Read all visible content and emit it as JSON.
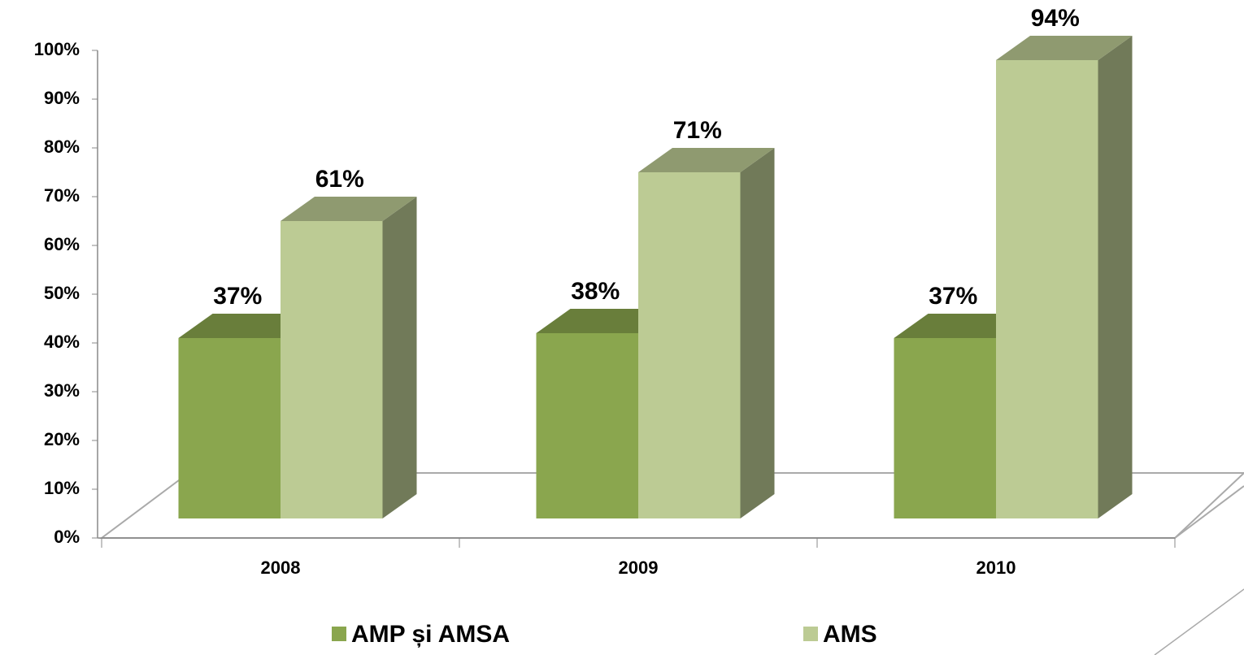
{
  "chart_data": {
    "type": "bar3d",
    "categories": [
      "2008",
      "2009",
      "2010"
    ],
    "series": [
      {
        "name": "AMP și AMSA",
        "color": "#8aa64e",
        "values": [
          37,
          38,
          37
        ],
        "value_labels": [
          "37%",
          "38%",
          "37%"
        ]
      },
      {
        "name": "AMS",
        "color": "#bccb94",
        "values": [
          61,
          71,
          94
        ],
        "value_labels": [
          "61%",
          "71%",
          "94%"
        ]
      }
    ],
    "ylim": [
      0,
      100
    ],
    "yticks": [
      {
        "value": 0,
        "label": "0%"
      },
      {
        "value": 10,
        "label": "10%"
      },
      {
        "value": 20,
        "label": "20%"
      },
      {
        "value": 30,
        "label": "30%"
      },
      {
        "value": 40,
        "label": "40%"
      },
      {
        "value": 50,
        "label": "50%"
      },
      {
        "value": 60,
        "label": "60%"
      },
      {
        "value": 70,
        "label": "70%"
      },
      {
        "value": 80,
        "label": "80%"
      },
      {
        "value": 90,
        "label": "90%"
      },
      {
        "value": 100,
        "label": "100%"
      }
    ],
    "legend": "bottom"
  }
}
